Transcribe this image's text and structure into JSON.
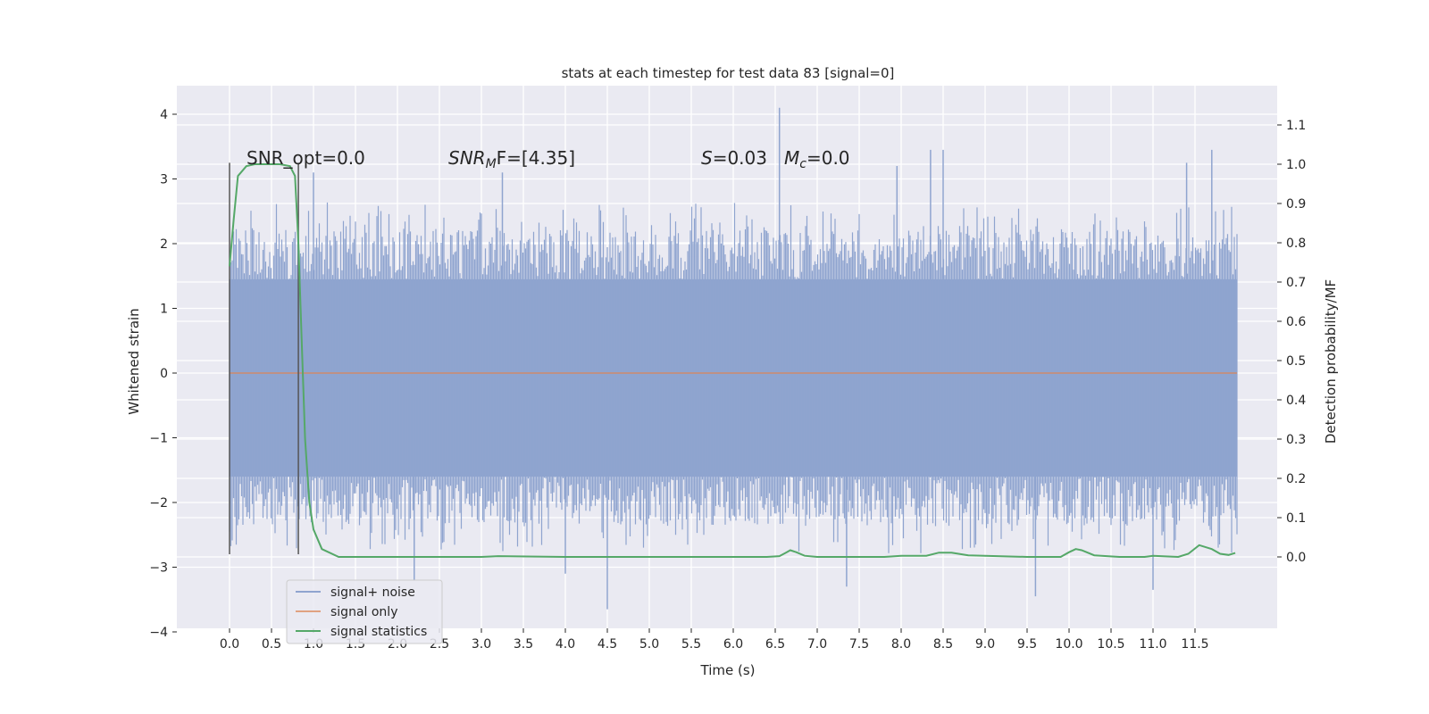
{
  "chart_data": {
    "type": "line",
    "title": "stats at each timestep for test data 83 [signal=0]",
    "xlabel": "Time (s)",
    "ylabel": "Whitened strain",
    "ylabel_right": "Detection probability/MF",
    "xlim": [
      -0.5,
      12.7
    ],
    "ylim_left": [
      -4.2,
      4.4
    ],
    "ylim_right": [
      -0.19,
      1.2
    ],
    "grid": true,
    "legend_position": "lower-left",
    "xticks": [
      "0.0",
      "0.5",
      "1.0",
      "1.5",
      "2.0",
      "2.5",
      "3.0",
      "3.5",
      "4.0",
      "4.5",
      "5.0",
      "5.5",
      "6.0",
      "6.5",
      "7.0",
      "7.5",
      "8.0",
      "8.5",
      "9.0",
      "9.5",
      "10.0",
      "10.5",
      "11.0",
      "11.5"
    ],
    "yticks_left": [
      "4",
      "3",
      "2",
      "1",
      "0",
      "−1",
      "−2",
      "−3",
      "−4"
    ],
    "yticks_right": [
      "1.1",
      "1.0",
      "0.9",
      "0.8",
      "0.7",
      "0.6",
      "0.5",
      "0.4",
      "0.3",
      "0.2",
      "0.1",
      "0.0"
    ],
    "annotations": {
      "snr_opt": "SNR_opt=0.0",
      "snr_mf_main": "SNR",
      "snr_mf_sub": "M",
      "snr_mf_rest": "F=[4.35]",
      "s_var": "S",
      "s_val": "=0.03",
      "mc_var": "M",
      "mc_sub": "c",
      "mc_val": "=0.0"
    },
    "marker_lines_x": [
      0.0,
      0.82
    ],
    "series": [
      {
        "name": "signal+ noise",
        "color": "#8fa4cf",
        "axis": "left",
        "x_range": [
          0.0,
          12.0
        ],
        "envelope_upper": 1.45,
        "envelope_lower": -1.6,
        "typical_peak": 2.4,
        "max": 4.1,
        "min": -3.7,
        "notable_peaks": [
          {
            "x": 6.55,
            "y": 4.1
          },
          {
            "x": 8.35,
            "y": 3.45
          },
          {
            "x": 8.5,
            "y": 3.45
          },
          {
            "x": 11.7,
            "y": 3.45
          },
          {
            "x": 11.4,
            "y": 3.25
          },
          {
            "x": 7.95,
            "y": 3.2
          },
          {
            "x": 1.0,
            "y": 3.1
          },
          {
            "x": 3.25,
            "y": 3.1
          },
          {
            "x": 2.2,
            "y": -3.2
          },
          {
            "x": 4.5,
            "y": -3.65
          },
          {
            "x": 9.6,
            "y": -3.45
          },
          {
            "x": 7.35,
            "y": -3.3
          },
          {
            "x": 11.0,
            "y": -3.35
          },
          {
            "x": 4.0,
            "y": -3.1
          }
        ]
      },
      {
        "name": "signal only",
        "color": "#dd8452",
        "axis": "left",
        "x": [
          0.0,
          12.0
        ],
        "y": [
          0.0,
          0.0
        ]
      },
      {
        "name": "signal statistics",
        "color": "#55a868",
        "axis": "right",
        "x": [
          0.0,
          0.05,
          0.1,
          0.2,
          0.3,
          0.45,
          0.6,
          0.72,
          0.78,
          0.82,
          0.86,
          0.9,
          0.95,
          1.0,
          1.1,
          1.3,
          2.0,
          3.0,
          3.2,
          4.0,
          5.0,
          6.0,
          6.4,
          6.55,
          6.62,
          6.68,
          6.75,
          6.85,
          7.0,
          7.5,
          7.8,
          8.0,
          8.3,
          8.45,
          8.6,
          8.8,
          9.5,
          9.9,
          10.0,
          10.08,
          10.15,
          10.3,
          10.6,
          10.9,
          11.0,
          11.3,
          11.42,
          11.55,
          11.7,
          11.8,
          11.9,
          11.98
        ],
        "y": [
          0.74,
          0.86,
          0.97,
          0.995,
          1.0,
          1.0,
          1.0,
          0.995,
          0.97,
          0.8,
          0.55,
          0.3,
          0.14,
          0.07,
          0.02,
          0.0,
          0.0,
          0.0,
          0.002,
          0.0,
          0.0,
          0.0,
          0.0,
          0.002,
          0.01,
          0.017,
          0.012,
          0.003,
          0.0,
          0.0,
          0.0,
          0.003,
          0.003,
          0.011,
          0.011,
          0.004,
          0.0,
          0.0,
          0.012,
          0.02,
          0.017,
          0.004,
          0.0,
          0.0,
          0.003,
          0.0,
          0.008,
          0.03,
          0.02,
          0.008,
          0.005,
          0.01
        ]
      }
    ]
  }
}
